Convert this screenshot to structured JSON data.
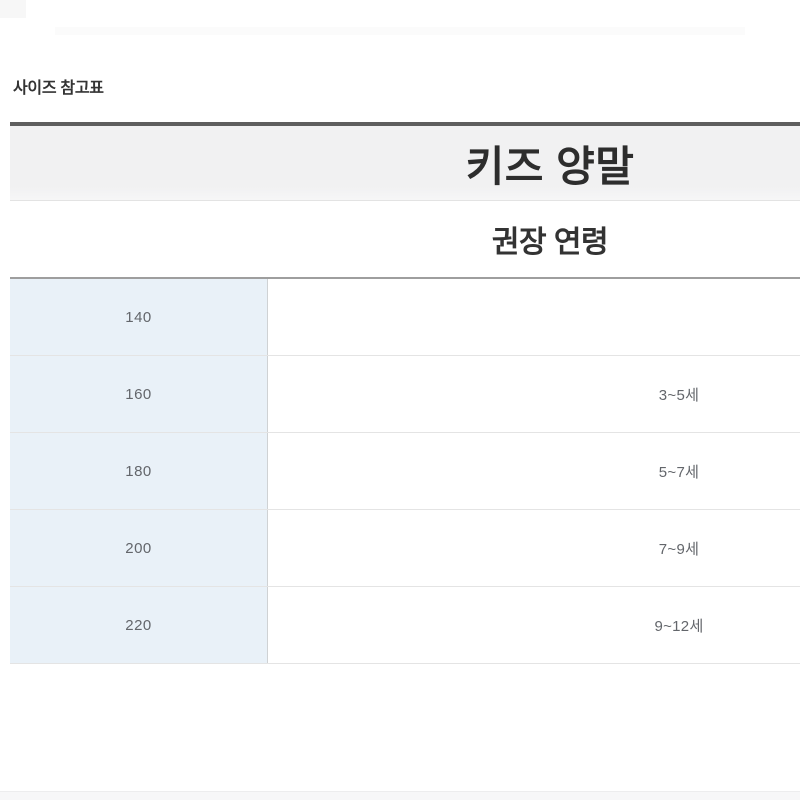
{
  "page_title": "사이즈 참고표",
  "size_chart": {
    "category_header": "키즈 양말",
    "column_header": "권장 연령",
    "rows": [
      {
        "size": "140",
        "age": ""
      },
      {
        "size": "160",
        "age": "3~5세"
      },
      {
        "size": "180",
        "age": "5~7세"
      },
      {
        "size": "200",
        "age": "7~9세"
      },
      {
        "size": "220",
        "age": "9~12세"
      }
    ]
  },
  "colors": {
    "size_column_bg": "#e9f1f8",
    "header_band_bg": "#f1f1f2",
    "header_band_top_border": "#5e5e5e",
    "table_top_border": "#9e9e9e",
    "row_divider": "#e4e4e4",
    "column_divider": "#cfd2d4",
    "cell_text": "#63666b",
    "heading_text": "#2d2d2d"
  }
}
